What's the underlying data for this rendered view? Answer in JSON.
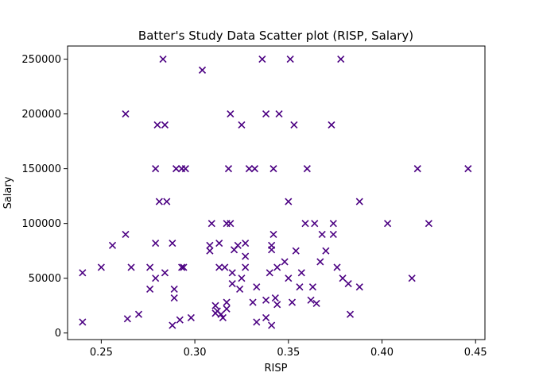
{
  "chart_data": {
    "type": "scatter",
    "title": "Batter's Study Data Scatter plot (RISP, Salary)",
    "xlabel": "RISP",
    "ylabel": "Salary",
    "xlim": [
      0.232,
      0.455
    ],
    "ylim": [
      -6000,
      262000
    ],
    "x_ticks": [
      0.25,
      0.3,
      0.35,
      0.4,
      0.45
    ],
    "x_tick_labels": [
      "0.25",
      "0.30",
      "0.35",
      "0.40",
      "0.45"
    ],
    "y_ticks": [
      0,
      50000,
      100000,
      150000,
      200000,
      250000
    ],
    "y_tick_labels": [
      "0",
      "50000",
      "100000",
      "150000",
      "200000",
      "250000"
    ],
    "grid": false,
    "marker": "x",
    "color": "#4B0082",
    "series": [
      {
        "points": [
          [
            0.24,
            55000
          ],
          [
            0.24,
            10000
          ],
          [
            0.25,
            60000
          ],
          [
            0.256,
            80000
          ],
          [
            0.263,
            200000
          ],
          [
            0.263,
            90000
          ],
          [
            0.264,
            13000
          ],
          [
            0.266,
            60000
          ],
          [
            0.27,
            17000
          ],
          [
            0.276,
            60000
          ],
          [
            0.276,
            40000
          ],
          [
            0.279,
            150000
          ],
          [
            0.279,
            82000
          ],
          [
            0.279,
            50000
          ],
          [
            0.28,
            190000
          ],
          [
            0.281,
            120000
          ],
          [
            0.283,
            250000
          ],
          [
            0.284,
            190000
          ],
          [
            0.284,
            55000
          ],
          [
            0.285,
            120000
          ],
          [
            0.288,
            82000
          ],
          [
            0.288,
            7000
          ],
          [
            0.289,
            40000
          ],
          [
            0.289,
            32000
          ],
          [
            0.29,
            150000
          ],
          [
            0.292,
            12000
          ],
          [
            0.293,
            150000
          ],
          [
            0.293,
            60000
          ],
          [
            0.294,
            60000
          ],
          [
            0.295,
            150000
          ],
          [
            0.298,
            14000
          ],
          [
            0.304,
            240000
          ],
          [
            0.308,
            80000
          ],
          [
            0.308,
            75000
          ],
          [
            0.309,
            100000
          ],
          [
            0.311,
            25000
          ],
          [
            0.311,
            18000
          ],
          [
            0.312,
            20000
          ],
          [
            0.313,
            82000
          ],
          [
            0.313,
            60000
          ],
          [
            0.314,
            17000
          ],
          [
            0.315,
            14000
          ],
          [
            0.316,
            60000
          ],
          [
            0.317,
            100000
          ],
          [
            0.317,
            28000
          ],
          [
            0.317,
            22000
          ],
          [
            0.318,
            150000
          ],
          [
            0.319,
            200000
          ],
          [
            0.319,
            100000
          ],
          [
            0.32,
            55000
          ],
          [
            0.32,
            45000
          ],
          [
            0.321,
            76000
          ],
          [
            0.323,
            80000
          ],
          [
            0.324,
            40000
          ],
          [
            0.325,
            190000
          ],
          [
            0.325,
            50000
          ],
          [
            0.327,
            82000
          ],
          [
            0.327,
            70000
          ],
          [
            0.327,
            60000
          ],
          [
            0.329,
            150000
          ],
          [
            0.331,
            28000
          ],
          [
            0.332,
            150000
          ],
          [
            0.333,
            42000
          ],
          [
            0.333,
            10000
          ],
          [
            0.336,
            250000
          ],
          [
            0.338,
            200000
          ],
          [
            0.338,
            30000
          ],
          [
            0.338,
            14000
          ],
          [
            0.34,
            55000
          ],
          [
            0.341,
            80000
          ],
          [
            0.341,
            76000
          ],
          [
            0.341,
            7000
          ],
          [
            0.342,
            150000
          ],
          [
            0.342,
            90000
          ],
          [
            0.343,
            32000
          ],
          [
            0.344,
            60000
          ],
          [
            0.344,
            26000
          ],
          [
            0.345,
            200000
          ],
          [
            0.348,
            65000
          ],
          [
            0.35,
            120000
          ],
          [
            0.35,
            50000
          ],
          [
            0.351,
            250000
          ],
          [
            0.352,
            28000
          ],
          [
            0.353,
            190000
          ],
          [
            0.354,
            75000
          ],
          [
            0.356,
            42000
          ],
          [
            0.357,
            55000
          ],
          [
            0.359,
            100000
          ],
          [
            0.36,
            150000
          ],
          [
            0.362,
            30000
          ],
          [
            0.363,
            42000
          ],
          [
            0.364,
            100000
          ],
          [
            0.365,
            27000
          ],
          [
            0.367,
            65000
          ],
          [
            0.368,
            90000
          ],
          [
            0.37,
            75000
          ],
          [
            0.373,
            190000
          ],
          [
            0.374,
            100000
          ],
          [
            0.374,
            90000
          ],
          [
            0.376,
            60000
          ],
          [
            0.378,
            250000
          ],
          [
            0.379,
            50000
          ],
          [
            0.382,
            45000
          ],
          [
            0.383,
            17000
          ],
          [
            0.388,
            120000
          ],
          [
            0.388,
            42000
          ],
          [
            0.403,
            100000
          ],
          [
            0.416,
            50000
          ],
          [
            0.419,
            150000
          ],
          [
            0.425,
            100000
          ],
          [
            0.446,
            150000
          ]
        ]
      }
    ]
  }
}
